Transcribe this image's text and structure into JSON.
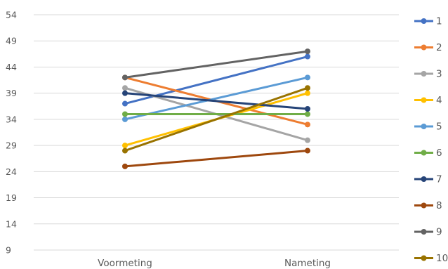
{
  "chart_data": {
    "type": "line",
    "title": "",
    "xlabel": "",
    "ylabel": "",
    "categories": [
      "Voormeting",
      "Nameting"
    ],
    "y_ticks": [
      "9",
      "14",
      "19",
      "24",
      "29",
      "34",
      "39",
      "44",
      "49",
      "54"
    ],
    "ylim": [
      9,
      54
    ],
    "grid": true,
    "legend_position": "right",
    "series": [
      {
        "name": "1",
        "color": "#4472C4",
        "values": [
          37,
          46
        ]
      },
      {
        "name": "2",
        "color": "#ED7D31",
        "values": [
          42,
          33
        ]
      },
      {
        "name": "3",
        "color": "#A5A5A5",
        "values": [
          40,
          30
        ]
      },
      {
        "name": "4",
        "color": "#FFC000",
        "values": [
          29,
          39
        ]
      },
      {
        "name": "5",
        "color": "#5B9BD5",
        "values": [
          34,
          42
        ]
      },
      {
        "name": "6",
        "color": "#70AD47",
        "values": [
          35,
          35
        ]
      },
      {
        "name": "7",
        "color": "#264478",
        "values": [
          39,
          36
        ]
      },
      {
        "name": "8",
        "color": "#9E480E",
        "values": [
          25,
          28
        ]
      },
      {
        "name": "9",
        "color": "#636363",
        "values": [
          42,
          47
        ]
      },
      {
        "name": "10",
        "color": "#997300",
        "values": [
          28,
          40
        ]
      }
    ]
  }
}
